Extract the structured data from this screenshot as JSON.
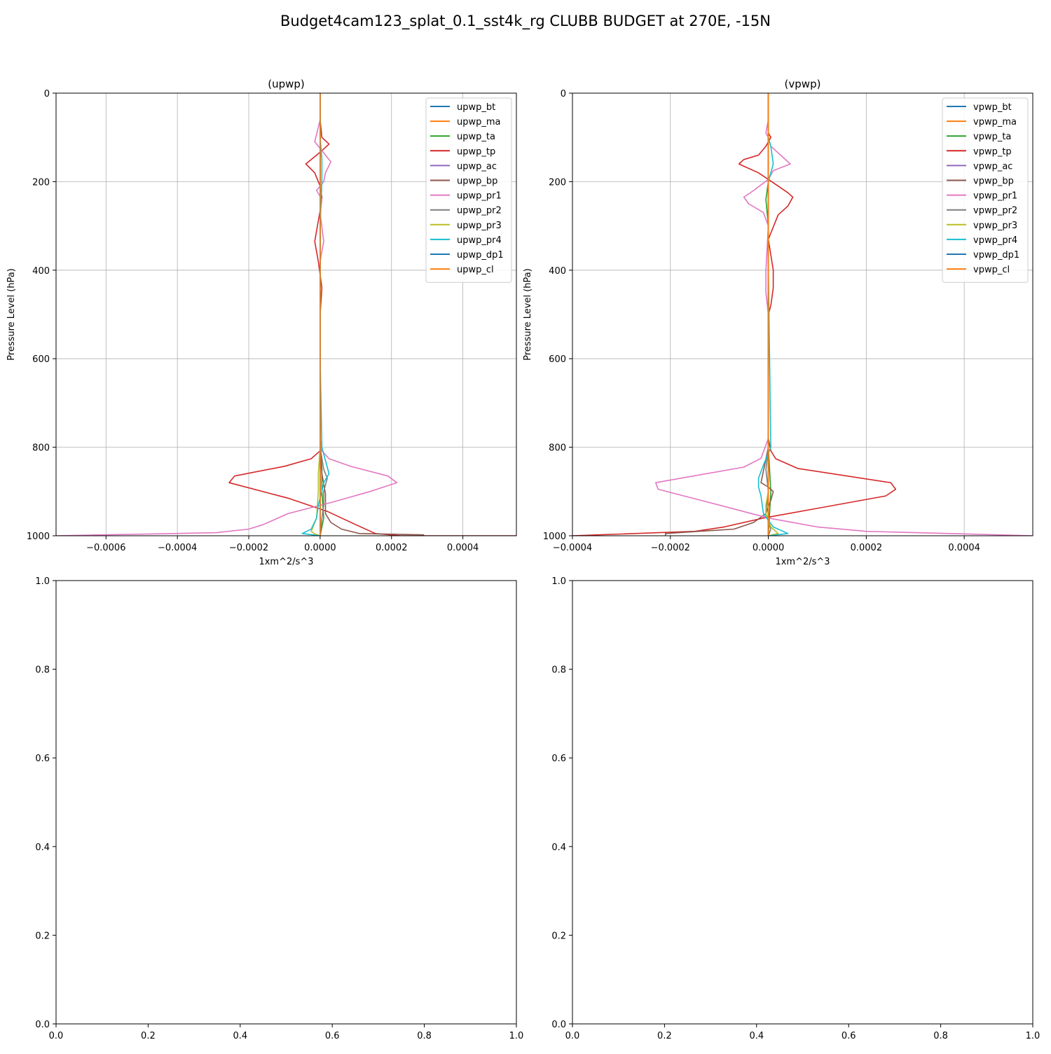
{
  "figure": {
    "suptitle": "Budget4cam123_splat_0.1_sst4k_rg CLUBB BUDGET at 270E, -15N"
  },
  "colors": {
    "tab_blue": "#1f77b4",
    "tab_orange": "#ff7f0e",
    "tab_green": "#2ca02c",
    "tab_red": "#d62728",
    "tab_purple": "#9467bd",
    "tab_brown": "#8c564b",
    "tab_pink": "#e377c2",
    "tab_gray": "#7f7f7f",
    "tab_olive": "#bcbd22",
    "tab_cyan": "#17becf"
  },
  "chart_data": [
    {
      "type": "line",
      "title": "(upwp)",
      "xlabel": "1xm^2/s^3",
      "ylabel": "Pressure Level (hPa)",
      "xlim": [
        -0.00074,
        0.00055
      ],
      "ylim": [
        1000,
        0
      ],
      "xticks": [
        -0.0006,
        -0.0004,
        -0.0002,
        0.0,
        0.0002,
        0.0004
      ],
      "xtick_labels": [
        "−0.0006",
        "−0.0004",
        "−0.0002",
        "0.0000",
        "0.0002",
        "0.0004"
      ],
      "yticks": [
        0,
        200,
        400,
        600,
        800,
        1000
      ],
      "ytick_labels": [
        "0",
        "200",
        "400",
        "600",
        "800",
        "1000"
      ],
      "grid": true,
      "legend_position": "upper right",
      "series": [
        {
          "name": "upwp_bt",
          "color": "#1f77b4",
          "x": [
            0,
            0,
            0,
            0,
            0,
            0,
            0,
            0
          ],
          "y": [
            0,
            200,
            400,
            600,
            800,
            900,
            960,
            1000
          ]
        },
        {
          "name": "upwp_ma",
          "color": "#ff7f0e",
          "x": [
            0,
            0,
            0,
            0,
            0,
            0,
            0,
            0
          ],
          "y": [
            0,
            200,
            400,
            600,
            800,
            900,
            960,
            1000
          ]
        },
        {
          "name": "upwp_ta",
          "color": "#2ca02c",
          "x": [
            0,
            0,
            0,
            0,
            0,
            5e-06,
            5e-06,
            1e-05,
            0
          ],
          "y": [
            0,
            200,
            400,
            600,
            800,
            850,
            900,
            960,
            1000
          ]
        },
        {
          "name": "upwp_tp",
          "color": "#d62728",
          "x": [
            0,
            0,
            5e-06,
            2.5e-05,
            5e-06,
            -4e-05,
            -1.5e-05,
            0,
            5e-06,
            0,
            -1.5e-05,
            -5e-06,
            5e-06,
            0,
            0,
            0,
            0,
            0,
            -2.5e-05,
            -0.0001,
            -0.00024,
            -0.000255,
            -9e-05,
            2e-05,
            0.0001,
            0.000155,
            0.000225,
            0.00055
          ],
          "y": [
            0,
            60,
            100,
            115,
            130,
            160,
            180,
            210,
            235,
            265,
            335,
            380,
            440,
            500,
            600,
            700,
            780,
            808,
            826,
            843,
            865,
            880,
            915,
            945,
            975,
            995,
            1000,
            1000
          ]
        },
        {
          "name": "upwp_ac",
          "color": "#9467bd",
          "x": [
            0,
            0,
            0,
            0,
            0,
            0,
            0
          ],
          "y": [
            0,
            200,
            400,
            600,
            800,
            900,
            1000
          ]
        },
        {
          "name": "upwp_bp",
          "color": "#8c564b",
          "x": [
            0,
            0,
            0,
            0,
            0,
            5e-06,
            1.5e-05,
            1.5e-05,
            3e-05,
            6e-05,
            0.00011,
            0.00029,
            0.00029
          ],
          "y": [
            0,
            200,
            400,
            600,
            800,
            860,
            905,
            950,
            970,
            985,
            995,
            998,
            1000
          ]
        },
        {
          "name": "upwp_pr1",
          "color": "#e377c2",
          "x": [
            0,
            0,
            -1.5e-05,
            1e-05,
            3e-05,
            1.5e-05,
            1e-05,
            -1e-05,
            5e-06,
            0,
            1e-05,
            0,
            0,
            0,
            0,
            0,
            0,
            5e-06,
            2.5e-05,
            8.5e-05,
            0.00019,
            0.000215,
            0.00014,
            3e-05,
            -9e-05,
            -0.00016,
            -0.0002,
            -0.00029,
            -0.00074
          ],
          "y": [
            0,
            60,
            110,
            135,
            155,
            180,
            200,
            220,
            240,
            270,
            335,
            380,
            440,
            500,
            600,
            700,
            780,
            808,
            826,
            843,
            865,
            880,
            900,
            925,
            950,
            975,
            985,
            993,
            1000
          ]
        },
        {
          "name": "upwp_pr2",
          "color": "#7f7f7f",
          "x": [
            0,
            0,
            0,
            0,
            0,
            1e-05,
            2e-05,
            1e-05,
            1e-05,
            5e-06,
            0
          ],
          "y": [
            0,
            200,
            400,
            600,
            800,
            850,
            870,
            900,
            930,
            960,
            1000
          ]
        },
        {
          "name": "upwp_pr3",
          "color": "#bcbd22",
          "x": [
            0,
            0,
            0,
            0,
            0,
            -5e-06,
            -5e-06,
            -1e-05,
            -2.5e-05,
            -1.5e-05,
            0
          ],
          "y": [
            0,
            200,
            400,
            600,
            800,
            860,
            900,
            960,
            990,
            996,
            1000
          ]
        },
        {
          "name": "upwp_pr4",
          "color": "#17becf",
          "x": [
            0,
            0,
            5e-06,
            5e-06,
            0,
            0,
            0,
            5e-06,
            1.5e-05,
            2.5e-05,
            1e-05,
            5e-06,
            -5e-06,
            -1e-05,
            -2.5e-05,
            -5e-05,
            0
          ],
          "y": [
            0,
            100,
            150,
            200,
            300,
            400,
            600,
            800,
            830,
            860,
            880,
            900,
            930,
            960,
            985,
            995,
            1000
          ]
        },
        {
          "name": "upwp_dp1",
          "color": "#1f77b4",
          "x": [
            0,
            0,
            0,
            0,
            0,
            0,
            0
          ],
          "y": [
            0,
            200,
            400,
            600,
            800,
            900,
            1000
          ]
        },
        {
          "name": "upwp_cl",
          "color": "#ff7f0e",
          "x": [
            0,
            0,
            0,
            0,
            0,
            0,
            0
          ],
          "y": [
            0,
            200,
            400,
            600,
            800,
            900,
            1000
          ]
        }
      ]
    },
    {
      "type": "line",
      "title": "(vpwp)",
      "xlabel": "1xm^2/s^3",
      "ylabel": "Pressure Level (hPa)",
      "xlim": [
        -0.0004,
        0.00054
      ],
      "ylim": [
        1000,
        0
      ],
      "xticks": [
        -0.0004,
        -0.0002,
        0.0,
        0.0002,
        0.0004
      ],
      "xtick_labels": [
        "−0.0004",
        "−0.0002",
        "0.0000",
        "0.0002",
        "0.0004"
      ],
      "yticks": [
        0,
        200,
        400,
        600,
        800,
        1000
      ],
      "ytick_labels": [
        "0",
        "200",
        "400",
        "600",
        "800",
        "1000"
      ],
      "grid": true,
      "legend_position": "upper right",
      "series": [
        {
          "name": "vpwp_bt",
          "color": "#1f77b4",
          "x": [
            0,
            0,
            0,
            0,
            0,
            0,
            0,
            0
          ],
          "y": [
            0,
            200,
            400,
            600,
            800,
            900,
            960,
            1000
          ]
        },
        {
          "name": "vpwp_ma",
          "color": "#ff7f0e",
          "x": [
            0,
            0,
            0,
            0,
            0,
            0,
            0,
            0
          ],
          "y": [
            0,
            200,
            400,
            600,
            800,
            900,
            960,
            1000
          ]
        },
        {
          "name": "vpwp_ta",
          "color": "#2ca02c",
          "x": [
            0,
            0,
            0,
            -5e-06,
            0,
            0,
            0,
            0,
            5e-06,
            0
          ],
          "y": [
            0,
            150,
            200,
            240,
            300,
            400,
            600,
            800,
            900,
            1000
          ]
        },
        {
          "name": "vpwp_tp",
          "color": "#d62728",
          "x": [
            0,
            0,
            0,
            5e-06,
            0,
            -5e-06,
            -2e-05,
            -5e-05,
            -6e-05,
            -2e-05,
            0,
            2e-05,
            4e-05,
            5e-05,
            4e-05,
            2e-05,
            0,
            1e-05,
            1e-05,
            5e-06,
            0,
            0,
            0,
            0,
            5e-06,
            1.5e-05,
            6e-05,
            0.00025,
            0.00026,
            0.00024,
            9e-05,
            -1e-05,
            -9e-05,
            -0.00015,
            -0.0004
          ],
          "y": [
            0,
            60,
            90,
            100,
            110,
            120,
            140,
            150,
            160,
            180,
            195,
            210,
            225,
            235,
            255,
            275,
            330,
            400,
            440,
            480,
            500,
            600,
            700,
            780,
            808,
            826,
            848,
            880,
            895,
            910,
            940,
            960,
            980,
            990,
            1000
          ]
        },
        {
          "name": "vpwp_ac",
          "color": "#9467bd",
          "x": [
            0,
            0,
            0,
            0,
            0,
            0,
            0
          ],
          "y": [
            0,
            200,
            400,
            600,
            800,
            900,
            1000
          ]
        },
        {
          "name": "vpwp_bp",
          "color": "#8c564b",
          "x": [
            0,
            0,
            0,
            0,
            0,
            -1.5e-05,
            0,
            1e-05,
            5e-06,
            -5e-06,
            -3e-05,
            -7e-05,
            -0.00021,
            -0.00021
          ],
          "y": [
            0,
            200,
            400,
            600,
            800,
            880,
            890,
            900,
            920,
            950,
            970,
            985,
            995,
            1000
          ]
        },
        {
          "name": "vpwp_pr1",
          "color": "#e377c2",
          "x": [
            0,
            0,
            -5e-06,
            0,
            5e-06,
            3e-05,
            4.5e-05,
            1e-05,
            0,
            -3e-05,
            -5e-05,
            -4e-05,
            -1e-05,
            0,
            -5e-06,
            -5e-06,
            0,
            0,
            0,
            0,
            -1.5e-05,
            -5e-05,
            -0.00023,
            -0.000225,
            -0.00012,
            0,
            0.0001,
            0.0002,
            0.00054
          ],
          "y": [
            0,
            60,
            90,
            100,
            120,
            145,
            160,
            175,
            195,
            220,
            235,
            250,
            270,
            300,
            400,
            450,
            500,
            600,
            700,
            780,
            825,
            845,
            880,
            895,
            925,
            960,
            980,
            990,
            1000
          ]
        },
        {
          "name": "vpwp_pr2",
          "color": "#7f7f7f",
          "x": [
            0,
            0,
            0,
            0,
            0,
            -5e-06,
            0,
            -5e-06,
            5e-06,
            0
          ],
          "y": [
            0,
            200,
            400,
            600,
            800,
            850,
            900,
            950,
            985,
            1000
          ]
        },
        {
          "name": "vpwp_pr3",
          "color": "#bcbd22",
          "x": [
            0,
            0,
            0,
            0,
            0,
            0,
            -5e-06,
            -5e-06,
            5e-06,
            2e-05,
            0
          ],
          "y": [
            0,
            200,
            400,
            600,
            800,
            900,
            930,
            950,
            980,
            995,
            1000
          ]
        },
        {
          "name": "vpwp_pr4",
          "color": "#17becf",
          "x": [
            0,
            0,
            5e-06,
            1e-05,
            5e-06,
            0,
            0,
            0,
            5e-06,
            -1e-05,
            -2e-05,
            -2e-05,
            -1.5e-05,
            -1e-05,
            1e-05,
            4e-05,
            0
          ],
          "y": [
            0,
            100,
            120,
            160,
            180,
            200,
            300,
            400,
            800,
            840,
            870,
            890,
            910,
            950,
            980,
            995,
            1000
          ]
        },
        {
          "name": "vpwp_dp1",
          "color": "#1f77b4",
          "x": [
            0,
            0,
            0,
            0,
            0,
            0,
            0
          ],
          "y": [
            0,
            200,
            400,
            600,
            800,
            900,
            1000
          ]
        },
        {
          "name": "vpwp_cl",
          "color": "#ff7f0e",
          "x": [
            0,
            0,
            0,
            0,
            0,
            0,
            0
          ],
          "y": [
            0,
            200,
            400,
            600,
            800,
            900,
            1000
          ]
        }
      ]
    },
    {
      "type": "line",
      "title": "",
      "xlim": [
        0.0,
        1.0
      ],
      "ylim": [
        0.0,
        1.0
      ],
      "xticks": [
        0.0,
        0.2,
        0.4,
        0.6,
        0.8,
        1.0
      ],
      "xtick_labels": [
        "0.0",
        "0.2",
        "0.4",
        "0.6",
        "0.8",
        "1.0"
      ],
      "yticks": [
        0.0,
        0.2,
        0.4,
        0.6,
        0.8,
        1.0
      ],
      "ytick_labels": [
        "0.0",
        "0.2",
        "0.4",
        "0.6",
        "0.8",
        "1.0"
      ],
      "grid": false,
      "series": []
    },
    {
      "type": "line",
      "title": "",
      "xlim": [
        0.0,
        1.0
      ],
      "ylim": [
        0.0,
        1.0
      ],
      "xticks": [
        0.0,
        0.2,
        0.4,
        0.6,
        0.8,
        1.0
      ],
      "xtick_labels": [
        "0.0",
        "0.2",
        "0.4",
        "0.6",
        "0.8",
        "1.0"
      ],
      "yticks": [
        0.0,
        0.2,
        0.4,
        0.6,
        0.8,
        1.0
      ],
      "ytick_labels": [
        "0.0",
        "0.2",
        "0.4",
        "0.6",
        "0.8",
        "1.0"
      ],
      "grid": false,
      "series": []
    }
  ]
}
